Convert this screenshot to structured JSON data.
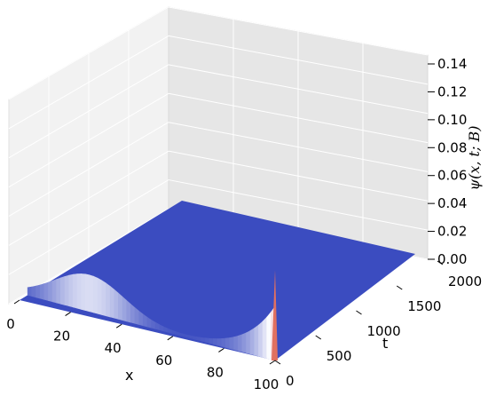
{
  "chart_data": {
    "type": "surface",
    "x": {
      "label": "x",
      "range": [
        0,
        100
      ],
      "ticks": [
        0,
        20,
        40,
        60,
        80,
        100
      ],
      "tick_labels": [
        "0",
        "20",
        "40",
        "60",
        "80",
        "100"
      ]
    },
    "t": {
      "label": "t",
      "range": [
        0,
        2000
      ],
      "ticks": [
        0,
        500,
        1000,
        1500,
        2000
      ],
      "tick_labels": [
        "0",
        "500",
        "1000",
        "1500",
        "2000"
      ]
    },
    "z": {
      "label": "ψ(x, t; B)",
      "range": [
        0,
        0.14
      ],
      "ticks": [
        0,
        0.02,
        0.04,
        0.06,
        0.08,
        0.1,
        0.12,
        0.14
      ],
      "tick_labels": [
        "0.00",
        "0.02",
        "0.04",
        "0.06",
        "0.08",
        "0.10",
        "0.12",
        "0.14"
      ]
    },
    "surface_features": [
      {
        "description_key": "ridge",
        "t_start": 0,
        "t_end": 100,
        "x_start": 100,
        "x_end": 0,
        "peak_value_at_x0_end": 0.025,
        "value_at_x100_start": 0.062
      },
      {
        "description_key": "peak",
        "x": 100,
        "t": 0,
        "max_value": 0.062
      }
    ],
    "colormap": [
      "#3b4cc0",
      "#ffffff",
      "#b40426"
    ],
    "grid": true
  }
}
